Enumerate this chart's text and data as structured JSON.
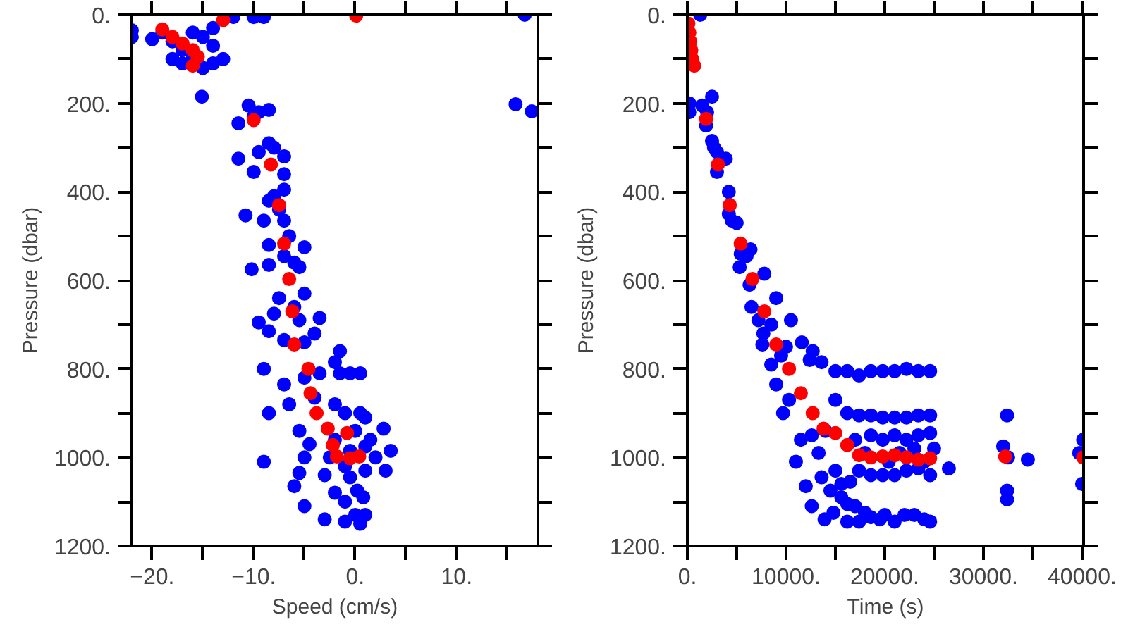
{
  "chart_data": [
    {
      "type": "scatter",
      "xlabel": "Speed (cm/s)",
      "ylabel": "Pressure (dbar)",
      "marker": "circle",
      "grid": false,
      "xlim": [
        -22,
        18
      ],
      "ylim": [
        1200,
        0
      ],
      "xticks": [
        {
          "value": -20,
          "label": "−20."
        },
        {
          "value": -15,
          "label": null
        },
        {
          "value": -10,
          "label": "−10."
        },
        {
          "value": -5,
          "label": null
        },
        {
          "value": 0,
          "label": "0."
        },
        {
          "value": 5,
          "label": null
        },
        {
          "value": 10,
          "label": "10."
        },
        {
          "value": 15,
          "label": null
        }
      ],
      "yticks": [
        {
          "value": 0,
          "label": "0."
        },
        {
          "value": 100,
          "label": null
        },
        {
          "value": 200,
          "label": "200."
        },
        {
          "value": 300,
          "label": null
        },
        {
          "value": 400,
          "label": "400."
        },
        {
          "value": 500,
          "label": null
        },
        {
          "value": 600,
          "label": "600."
        },
        {
          "value": 700,
          "label": null
        },
        {
          "value": 800,
          "label": "800."
        },
        {
          "value": 900,
          "label": null
        },
        {
          "value": 1000,
          "label": "1000."
        },
        {
          "value": 1100,
          "label": null
        },
        {
          "value": 1200,
          "label": "1200."
        }
      ],
      "series": [
        {
          "color": "#0000ff",
          "x": [
            -22,
            -22,
            -20,
            -19,
            -18,
            -17,
            -17,
            -16,
            -15,
            -14,
            -13,
            -14,
            -15,
            -12,
            -10,
            -9,
            -14,
            -18,
            -16,
            -15.1,
            16.7,
            15.8,
            17.4,
            -10.5,
            -11.5,
            -9.5,
            -8.5,
            -10,
            -11.5,
            -8.5,
            -8,
            -7,
            -7,
            -10,
            -9.5,
            -8,
            -7,
            -10.8,
            -9,
            -7.5,
            -8.5,
            -7,
            -6.5,
            -8.5,
            -5,
            -10.2,
            -8.5,
            -5.5,
            -7,
            -6,
            -7.5,
            -5,
            -5.5,
            -9.5,
            -8.5,
            -7,
            -4,
            -3.5,
            -6,
            -5,
            -8,
            -1.5,
            -9,
            -7,
            -2,
            -1.5,
            -0.5,
            0.5,
            -3.5,
            -5,
            -8.5,
            -6.5,
            -4,
            -2,
            -1,
            0.5,
            1,
            2.8,
            3.5,
            -5.5,
            -4.5,
            -5,
            -2,
            0,
            1.5,
            2,
            -9,
            -5.5,
            -3,
            -1,
            1,
            3,
            -0.5,
            1,
            -2.5,
            -6,
            -5,
            -3,
            -2,
            -1,
            0,
            1,
            -1,
            0.5,
            0.8,
            -0.5,
            0.2
          ],
          "values": [
            35,
            50,
            55,
            40,
            60,
            80,
            110,
            100,
            120,
            110,
            100,
            70,
            50,
            5,
            5,
            5,
            30,
            100,
            40,
            185,
            0,
            202,
            218,
            205,
            245,
            220,
            215,
            230,
            325,
            290,
            300,
            320,
            360,
            355,
            310,
            410,
            395,
            453,
            465,
            440,
            420,
            465,
            500,
            520,
            525,
            575,
            565,
            570,
            545,
            560,
            640,
            630,
            690,
            695,
            715,
            735,
            720,
            685,
            660,
            740,
            675,
            760,
            800,
            835,
            785,
            810,
            810,
            810,
            810,
            820,
            900,
            880,
            865,
            880,
            900,
            900,
            910,
            935,
            985,
            940,
            970,
            1000,
            960,
            940,
            960,
            1000,
            1010,
            1035,
            1040,
            1020,
            1030,
            1030,
            985,
            975,
            1000,
            1065,
            1110,
            1140,
            1080,
            1100,
            1130,
            1130,
            1145,
            1150,
            1090,
            1045,
            1075
          ]
        },
        {
          "color": "#ff0000",
          "x": [
            -19,
            -18,
            -17,
            -16,
            -15.5,
            -16,
            -13,
            0.1,
            -10,
            -8.3,
            -7.5,
            -7,
            -6.5,
            -6.2,
            -6,
            -4.6,
            -4.4,
            -3.8,
            -2.7,
            -0.8,
            -2.2,
            -1.8,
            -0.5,
            0.4
          ],
          "values": [
            33,
            50,
            65,
            80,
            95,
            115,
            12,
            2,
            238,
            338,
            430,
            517,
            597,
            670,
            745,
            800,
            855,
            900,
            935,
            945,
            972,
            998,
            1002,
            998
          ]
        }
      ]
    },
    {
      "type": "scatter",
      "xlabel": "Time (s)",
      "ylabel": "Pressure (dbar)",
      "marker": "circle",
      "grid": false,
      "xlim": [
        0,
        40150
      ],
      "ylim": [
        1200,
        0
      ],
      "xticks": [
        {
          "value": 0,
          "label": "0."
        },
        {
          "value": 5000,
          "label": null
        },
        {
          "value": 10000,
          "label": "10000."
        },
        {
          "value": 15000,
          "label": null
        },
        {
          "value": 20000,
          "label": "20000."
        },
        {
          "value": 25000,
          "label": null
        },
        {
          "value": 30000,
          "label": "30000."
        },
        {
          "value": 35000,
          "label": null
        },
        {
          "value": 40000,
          "label": "40000."
        }
      ],
      "yticks": [
        {
          "value": 0,
          "label": "0."
        },
        {
          "value": 100,
          "label": null
        },
        {
          "value": 200,
          "label": "200."
        },
        {
          "value": 300,
          "label": null
        },
        {
          "value": 400,
          "label": "400."
        },
        {
          "value": 500,
          "label": null
        },
        {
          "value": 600,
          "label": "600."
        },
        {
          "value": 700,
          "label": null
        },
        {
          "value": 800,
          "label": "800."
        },
        {
          "value": 900,
          "label": null
        },
        {
          "value": 1000,
          "label": "1000."
        },
        {
          "value": 1100,
          "label": null
        },
        {
          "value": 1200,
          "label": "1200."
        }
      ],
      "series": [
        {
          "color": "#0000ff",
          "x": [
            1300,
            200,
            200,
            1500,
            2000,
            2500,
            1900,
            2500,
            3000,
            2700,
            3900,
            3000,
            4200,
            4200,
            4500,
            5000,
            5400,
            5300,
            6000,
            6400,
            6300,
            7800,
            6500,
            7200,
            7700,
            7600,
            8500,
            9000,
            8500,
            9000,
            10000,
            10500,
            9500,
            9700,
            10300,
            11000,
            11600,
            12400,
            12700,
            13600,
            14000,
            15000,
            16200,
            17400,
            18600,
            19800,
            21000,
            22200,
            23400,
            24600,
            16200,
            17400,
            18600,
            19800,
            21000,
            22200,
            23400,
            24600,
            15000,
            12000,
            12600,
            13600,
            13900,
            14800,
            15600,
            16200,
            16200,
            17000,
            17400,
            18000,
            18600,
            19500,
            20000,
            21000,
            22000,
            23000,
            24000,
            24600,
            14500,
            15600,
            16500,
            17000,
            17400,
            18600,
            18600,
            19800,
            19800,
            21000,
            21000,
            22200,
            22200,
            23400,
            23400,
            24600,
            24600,
            25000,
            26500,
            32000,
            32500,
            32400,
            32400,
            32400,
            34500,
            39700,
            40000,
            40100,
            15000,
            20400,
            18000,
            21500,
            23000,
            24000,
            12600,
            13300,
            11500
          ],
          "values": [
            0,
            200,
            220,
            205,
            220,
            185,
            250,
            285,
            310,
            300,
            325,
            355,
            400,
            450,
            465,
            470,
            540,
            570,
            545,
            530,
            610,
            585,
            660,
            690,
            720,
            745,
            700,
            640,
            790,
            835,
            750,
            690,
            770,
            900,
            870,
            1010,
            740,
            780,
            760,
            785,
            940,
            805,
            805,
            815,
            805,
            805,
            805,
            800,
            805,
            805,
            900,
            905,
            905,
            910,
            910,
            910,
            905,
            905,
            870,
            1065,
            1110,
            1045,
            1140,
            1125,
            1090,
            1105,
            1145,
            1110,
            1145,
            1125,
            1135,
            1140,
            1130,
            1145,
            1130,
            1130,
            1140,
            1145,
            1075,
            1060,
            1055,
            960,
            1030,
            950,
            1040,
            960,
            1040,
            950,
            1040,
            960,
            1030,
            950,
            1025,
            945,
            1040,
            980,
            1025,
            975,
            1000,
            905,
            1075,
            1095,
            1005,
            990,
            1060,
            960,
            1030,
            1010,
            990,
            990,
            980,
            1010,
            950,
            990,
            960
          ]
        },
        {
          "color": "#ff0000",
          "x": [
            100,
            200,
            300,
            400,
            500,
            700,
            1900,
            3100,
            4300,
            5400,
            6600,
            7800,
            9000,
            10300,
            11500,
            12700,
            13800,
            15000,
            16200,
            17400,
            18600,
            19800,
            21000,
            22200,
            23400,
            24600,
            32200,
            40100
          ],
          "values": [
            20,
            40,
            60,
            80,
            100,
            115,
            235,
            338,
            430,
            517,
            597,
            670,
            745,
            800,
            855,
            900,
            935,
            945,
            972,
            995,
            1000,
            998,
            995,
            1000,
            1005,
            1002,
            998,
            1000
          ]
        }
      ]
    }
  ]
}
